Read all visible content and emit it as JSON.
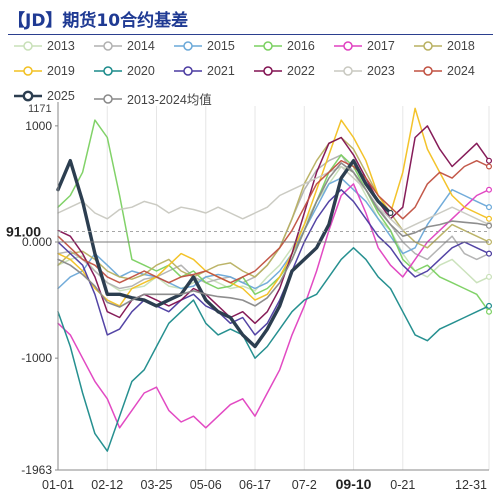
{
  "title": "【JD】期货10合约基差",
  "chart_data": {
    "type": "line",
    "title": "【JD】期货10合约基差",
    "xlabel": "",
    "ylabel": "",
    "x_ticks": [
      "01-01",
      "02-12",
      "03-25",
      "05-06",
      "06-17",
      "07-2",
      "09-10",
      "0-21",
      "12-31"
    ],
    "x_ticks_bold": [
      "09-10"
    ],
    "y_ticks": [
      1000,
      0,
      -1000,
      -1963
    ],
    "y_tick_labels": [
      "1000",
      "0.000",
      "-1000",
      "-1963"
    ],
    "y_top_label": "1171",
    "ylim": [
      -1963,
      1171
    ],
    "current_value_label": "91.00",
    "current_value": 91,
    "grid": "vertical",
    "legend_position": "top",
    "x": [
      "01-01",
      "01-12",
      "01-22",
      "02-02",
      "02-12",
      "02-22",
      "03-04",
      "03-14",
      "03-25",
      "04-04",
      "04-15",
      "04-25",
      "05-06",
      "05-16",
      "05-27",
      "06-06",
      "06-17",
      "06-27",
      "07-08",
      "07-18",
      "07-29",
      "08-08",
      "08-19",
      "08-29",
      "09-10",
      "09-20",
      "09-30",
      "10-10",
      "10-21",
      "10-31",
      "11-10",
      "11-20",
      "12-01",
      "12-10",
      "12-20",
      "12-31"
    ],
    "series": [
      {
        "name": "2013",
        "color": "#c8e0b8",
        "values": [
          -200,
          -150,
          -120,
          -250,
          -350,
          -420,
          -400,
          -380,
          -300,
          -380,
          -400,
          -350,
          -300,
          -350,
          -400,
          -380,
          -420,
          -300,
          -200,
          -50,
          150,
          350,
          500,
          650,
          600,
          400,
          200,
          100,
          -100,
          -250,
          -300,
          -200,
          -150,
          -250,
          -350,
          -300
        ]
      },
      {
        "name": "2014",
        "color": "#b0b0b0",
        "values": [
          -100,
          -80,
          -150,
          -250,
          -350,
          -400,
          -380,
          -320,
          -300,
          -250,
          -200,
          -300,
          -350,
          -320,
          -300,
          -350,
          -300,
          -200,
          -50,
          200,
          450,
          620,
          700,
          750,
          600,
          450,
          300,
          150,
          0,
          -100,
          -150,
          -50,
          50,
          -100,
          -150,
          -100
        ]
      },
      {
        "name": "2015",
        "color": "#6aa8d8",
        "values": [
          -400,
          -300,
          -250,
          -100,
          -200,
          -300,
          -250,
          -280,
          -300,
          -350,
          -400,
          -380,
          -300,
          -280,
          -300,
          -350,
          -400,
          -350,
          -250,
          -100,
          100,
          300,
          500,
          550,
          450,
          350,
          200,
          50,
          -100,
          -50,
          150,
          300,
          450,
          400,
          350,
          300
        ]
      },
      {
        "name": "2016",
        "color": "#7ad060",
        "values": [
          300,
          400,
          600,
          1050,
          900,
          400,
          -150,
          -200,
          -250,
          -200,
          -300,
          -250,
          -350,
          -400,
          -380,
          -300,
          -450,
          -400,
          -300,
          -150,
          100,
          350,
          600,
          750,
          650,
          450,
          250,
          100,
          -150,
          -250,
          -200,
          -300,
          -350,
          -400,
          -450,
          -600
        ]
      },
      {
        "name": "2017",
        "color": "#e040c0",
        "values": [
          -700,
          -800,
          -1000,
          -1200,
          -1350,
          -1600,
          -1450,
          -1300,
          -1250,
          -1450,
          -1550,
          -1500,
          -1600,
          -1500,
          -1400,
          -1350,
          -1500,
          -1300,
          -1100,
          -800,
          -550,
          -250,
          100,
          400,
          500,
          250,
          -50,
          -200,
          -300,
          -150,
          0,
          100,
          200,
          300,
          400,
          450
        ]
      },
      {
        "name": "2018",
        "color": "#b8b060",
        "values": [
          -200,
          -100,
          -80,
          -150,
          -250,
          -300,
          -320,
          -280,
          -200,
          -150,
          -250,
          -300,
          -250,
          -200,
          -180,
          -250,
          -300,
          -200,
          -50,
          200,
          500,
          700,
          850,
          900,
          800,
          600,
          400,
          250,
          100,
          0,
          -50,
          50,
          150,
          100,
          50,
          0
        ]
      },
      {
        "name": "2019",
        "color": "#f2c020",
        "values": [
          -100,
          -150,
          -250,
          -400,
          -500,
          -550,
          -400,
          -350,
          -300,
          -200,
          -100,
          -150,
          -250,
          -300,
          -350,
          -400,
          -500,
          -450,
          -300,
          -100,
          150,
          450,
          750,
          1050,
          900,
          700,
          400,
          250,
          600,
          1150,
          800,
          600,
          400,
          300,
          250,
          200
        ]
      },
      {
        "name": "2020",
        "color": "#1a8a8a",
        "values": [
          -600,
          -900,
          -1300,
          -1650,
          -1800,
          -1500,
          -1200,
          -1100,
          -900,
          -700,
          -600,
          -500,
          -700,
          -800,
          -750,
          -800,
          -1000,
          -900,
          -750,
          -600,
          -500,
          -450,
          -300,
          -150,
          -50,
          -150,
          -300,
          -400,
          -600,
          -800,
          -850,
          -750,
          -700,
          -650,
          -600,
          -550
        ]
      },
      {
        "name": "2021",
        "color": "#4a3aa0",
        "values": [
          0,
          -100,
          -200,
          -450,
          -800,
          -750,
          -600,
          -500,
          -550,
          -600,
          -500,
          -450,
          -550,
          -600,
          -700,
          -650,
          -800,
          -700,
          -500,
          -250,
          0,
          200,
          350,
          450,
          350,
          200,
          50,
          -50,
          -200,
          -300,
          -250,
          -150,
          -50,
          0,
          -50,
          -100
        ]
      },
      {
        "name": "2022",
        "color": "#801050",
        "values": [
          100,
          50,
          -100,
          -300,
          -600,
          -650,
          -500,
          -450,
          -500,
          -550,
          -500,
          -400,
          -450,
          -550,
          -650,
          -600,
          -700,
          -600,
          -400,
          -100,
          250,
          600,
          850,
          900,
          750,
          550,
          350,
          200,
          300,
          900,
          1000,
          800,
          650,
          750,
          850,
          700
        ]
      },
      {
        "name": "2023",
        "color": "#c8c8c0",
        "values": [
          250,
          300,
          350,
          250,
          200,
          280,
          300,
          350,
          320,
          250,
          300,
          280,
          250,
          300,
          250,
          200,
          250,
          300,
          400,
          450,
          500,
          550,
          600,
          650,
          550,
          450,
          300,
          200,
          100,
          150,
          200,
          250,
          300,
          250,
          200,
          150
        ]
      },
      {
        "name": "2024",
        "color": "#c05040",
        "values": [
          50,
          -50,
          -150,
          -200,
          -300,
          -350,
          -300,
          -250,
          -300,
          -350,
          -300,
          -280,
          -250,
          -300,
          -350,
          -300,
          -250,
          -150,
          -50,
          100,
          300,
          500,
          600,
          700,
          650,
          550,
          400,
          300,
          200,
          300,
          500,
          600,
          550,
          650,
          700,
          650
        ]
      },
      {
        "name": "2025",
        "color": "#2c3e50",
        "values": [
          450,
          700,
          350,
          -100,
          -450,
          -450,
          -480,
          -500,
          -550,
          -500,
          -450,
          -300,
          -500,
          -600,
          -650,
          -800,
          -900,
          -750,
          -550,
          -250,
          -150,
          -50,
          150,
          550,
          700,
          500,
          350,
          250,
          null,
          null,
          null,
          null,
          null,
          null,
          null,
          null
        ]
      },
      {
        "name": "2013-2024均值",
        "color": "#888888",
        "values": [
          -150,
          -200,
          -280,
          -380,
          -520,
          -560,
          -500,
          -450,
          -450,
          -450,
          -450,
          -420,
          -450,
          -470,
          -480,
          -500,
          -550,
          -480,
          -350,
          -150,
          100,
          350,
          550,
          680,
          600,
          450,
          280,
          150,
          50,
          80,
          130,
          150,
          180,
          170,
          160,
          140
        ]
      }
    ]
  }
}
